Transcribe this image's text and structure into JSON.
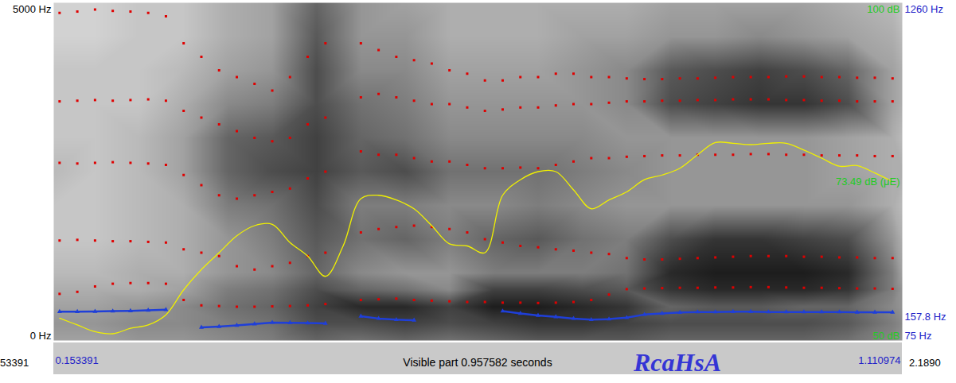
{
  "chart_data": [
    {
      "type": "spectrogram",
      "xlim": [
        0.153391,
        1.110974
      ],
      "xticks": [
        0.153391,
        1.110974
      ],
      "ylim": [
        0,
        5000
      ],
      "yticks": [
        {
          "value": 0,
          "label": "0 Hz"
        },
        {
          "value": 5000,
          "label": "5000 Hz"
        }
      ],
      "cells": {
        "x": [
          0.153391,
          0.2,
          0.25,
          0.3,
          0.35,
          0.4,
          0.45,
          0.5,
          0.55,
          0.6,
          0.65,
          0.7,
          0.75,
          0.8,
          0.85,
          0.9,
          0.95,
          1.0,
          1.05,
          1.1,
          1.110974
        ],
        "y": [
          0,
          250,
          500,
          750,
          1000,
          1500,
          2000,
          2500,
          3000,
          3500,
          4000,
          4500,
          5000
        ],
        "values": [
          [
            0.35,
            0.35,
            0.4,
            0.4,
            0.45,
            0.5,
            0.6,
            0.55,
            0.6,
            0.55,
            0.6,
            0.65,
            0.65,
            0.65,
            0.6,
            0.6,
            0.6,
            0.6,
            0.55,
            0.45,
            0.4
          ],
          [
            0.4,
            0.4,
            0.45,
            0.45,
            0.5,
            0.55,
            0.7,
            0.7,
            0.75,
            0.7,
            0.75,
            0.8,
            0.8,
            0.75,
            0.7,
            0.7,
            0.7,
            0.7,
            0.65,
            0.5,
            0.45
          ],
          [
            0.35,
            0.35,
            0.4,
            0.45,
            0.55,
            0.6,
            0.75,
            0.85,
            0.85,
            0.75,
            0.9,
            0.9,
            0.85,
            0.8,
            0.6,
            0.65,
            0.65,
            0.6,
            0.6,
            0.45,
            0.4
          ],
          [
            0.3,
            0.3,
            0.3,
            0.35,
            0.5,
            0.55,
            0.7,
            0.6,
            0.55,
            0.45,
            0.75,
            0.75,
            0.7,
            0.65,
            0.8,
            0.85,
            0.85,
            0.85,
            0.8,
            0.5,
            0.4
          ],
          [
            0.25,
            0.25,
            0.3,
            0.3,
            0.4,
            0.45,
            0.6,
            0.45,
            0.4,
            0.4,
            0.5,
            0.5,
            0.5,
            0.55,
            0.85,
            0.9,
            0.9,
            0.9,
            0.85,
            0.5,
            0.35
          ],
          [
            0.2,
            0.2,
            0.25,
            0.3,
            0.4,
            0.5,
            0.65,
            0.55,
            0.6,
            0.5,
            0.6,
            0.65,
            0.55,
            0.5,
            0.7,
            0.8,
            0.8,
            0.75,
            0.7,
            0.4,
            0.3
          ],
          [
            0.2,
            0.2,
            0.25,
            0.3,
            0.5,
            0.55,
            0.7,
            0.5,
            0.5,
            0.45,
            0.45,
            0.5,
            0.45,
            0.4,
            0.4,
            0.4,
            0.4,
            0.4,
            0.4,
            0.3,
            0.25
          ],
          [
            0.25,
            0.2,
            0.25,
            0.35,
            0.6,
            0.7,
            0.75,
            0.65,
            0.7,
            0.55,
            0.55,
            0.55,
            0.5,
            0.45,
            0.4,
            0.4,
            0.4,
            0.4,
            0.35,
            0.3,
            0.3
          ],
          [
            0.2,
            0.2,
            0.25,
            0.35,
            0.6,
            0.65,
            0.75,
            0.6,
            0.55,
            0.45,
            0.45,
            0.45,
            0.45,
            0.4,
            0.4,
            0.4,
            0.4,
            0.4,
            0.35,
            0.3,
            0.25
          ],
          [
            0.2,
            0.2,
            0.2,
            0.3,
            0.45,
            0.5,
            0.7,
            0.55,
            0.5,
            0.4,
            0.4,
            0.4,
            0.4,
            0.45,
            0.7,
            0.75,
            0.8,
            0.8,
            0.7,
            0.35,
            0.3
          ],
          [
            0.2,
            0.2,
            0.2,
            0.25,
            0.35,
            0.4,
            0.7,
            0.45,
            0.45,
            0.35,
            0.35,
            0.35,
            0.4,
            0.45,
            0.65,
            0.7,
            0.75,
            0.7,
            0.6,
            0.35,
            0.3
          ],
          [
            0.15,
            0.15,
            0.2,
            0.2,
            0.3,
            0.35,
            0.65,
            0.4,
            0.4,
            0.3,
            0.3,
            0.3,
            0.35,
            0.35,
            0.4,
            0.4,
            0.45,
            0.4,
            0.35,
            0.3,
            0.25
          ],
          [
            0.15,
            0.15,
            0.2,
            0.2,
            0.3,
            0.35,
            0.6,
            0.4,
            0.35,
            0.3,
            0.3,
            0.3,
            0.3,
            0.3,
            0.35,
            0.35,
            0.35,
            0.35,
            0.3,
            0.25,
            0.2
          ]
        ],
        "zlim": [
          0,
          1
        ]
      },
      "x": [
        0.16,
        0.18,
        0.2,
        0.22,
        0.24,
        0.26,
        0.28,
        0.3,
        0.32,
        0.34,
        0.36,
        0.38,
        0.4,
        0.42,
        0.44,
        0.46,
        0.48,
        0.5,
        0.52,
        0.54,
        0.56,
        0.58,
        0.6,
        0.62,
        0.64,
        0.66,
        0.68,
        0.7,
        0.72,
        0.74,
        0.76,
        0.78,
        0.8,
        0.82,
        0.84,
        0.86,
        0.88,
        0.9,
        0.92,
        0.94,
        0.96,
        0.98,
        1.0,
        1.02,
        1.04,
        1.06,
        1.08,
        1.1
      ],
      "series": [
        {
          "color": "#e00000",
          "marker": "square",
          "values": [
            690,
            720,
            800,
            840,
            850,
            850,
            840,
            600,
            520,
            510,
            500,
            500,
            505,
            510,
            520,
            540,
            null,
            600,
            610,
            620,
            600,
            590,
            580,
            570,
            570,
            560,
            560,
            555,
            560,
            570,
            600,
            680,
            760,
            770,
            775,
            780,
            780,
            785,
            785,
            790,
            790,
            785,
            780,
            780,
            775,
            770,
            770,
            765
          ]
        },
        {
          "color": "#e00000",
          "marker": "square",
          "values": [
            1480,
            1490,
            1480,
            1470,
            1470,
            1460,
            1450,
            1350,
            1300,
            1250,
            1100,
            1050,
            1100,
            1150,
            1250,
            1300,
            null,
            1600,
            1650,
            1680,
            1700,
            1680,
            1650,
            1600,
            1500,
            1450,
            1400,
            1380,
            1350,
            1330,
            1300,
            1280,
            1220,
            1200,
            1200,
            1210,
            1220,
            1230,
            1240,
            1250,
            1250,
            1250,
            1240,
            1240,
            1230,
            1230,
            1220,
            1220
          ]
        },
        {
          "color": "#e00000",
          "marker": "square",
          "values": [
            2630,
            2620,
            2630,
            2640,
            2630,
            2620,
            2600,
            2450,
            2300,
            2150,
            2100,
            2150,
            2200,
            2250,
            2400,
            2500,
            null,
            2800,
            2750,
            2750,
            2700,
            2650,
            2650,
            2600,
            2550,
            2550,
            2560,
            2550,
            2600,
            2650,
            2700,
            2700,
            2720,
            2730,
            2740,
            2740,
            2750,
            2750,
            2750,
            2760,
            2760,
            2750,
            2750,
            2740,
            2740,
            2740,
            2730,
            2730
          ]
        },
        {
          "color": "#e00000",
          "marker": "square",
          "values": [
            3540,
            3550,
            3560,
            3550,
            3560,
            3570,
            3550,
            3400,
            3300,
            3200,
            3100,
            3000,
            2950,
            3000,
            3200,
            3300,
            null,
            3600,
            3650,
            3600,
            3550,
            3500,
            3500,
            3450,
            3400,
            3420,
            3450,
            3450,
            3480,
            3500,
            3500,
            3520,
            3540,
            3540,
            3550,
            3550,
            3560,
            3560,
            3570,
            3570,
            3570,
            3560,
            3560,
            3550,
            3550,
            3540,
            3540,
            3540
          ]
        },
        {
          "color": "#e00000",
          "marker": "square",
          "values": [
            4850,
            4870,
            4900,
            4880,
            4870,
            4850,
            4800,
            4400,
            4200,
            4000,
            3900,
            3800,
            3700,
            3900,
            4200,
            4400,
            null,
            4400,
            4300,
            4200,
            4150,
            4100,
            4000,
            3950,
            3850,
            3850,
            3900,
            3900,
            3950,
            3950,
            3900,
            3900,
            3880,
            3870,
            3870,
            3880,
            3880,
            3890,
            3900,
            3900,
            3900,
            3910,
            3910,
            3900,
            3900,
            3890,
            3890,
            3880
          ]
        }
      ],
      "annotations": [
        {
          "text": "53391"
        },
        {
          "text": "Visible part 0.957582 seconds"
        },
        {
          "text": "RcaHsA"
        },
        {
          "text": "2.1890"
        }
      ]
    },
    {
      "type": "line",
      "xlim": [
        0.153391,
        1.110974
      ],
      "ylim": [
        75,
        1260
      ],
      "yticks": [
        {
          "value": 75,
          "label": "75 Hz"
        },
        {
          "value": 157.8,
          "label": "157.8 Hz"
        },
        {
          "value": 1260,
          "label": "1260 Hz"
        }
      ],
      "tick_labels": "y",
      "x": [
        0.16,
        0.18,
        0.2,
        0.22,
        0.24,
        0.26,
        0.28,
        0.3,
        0.32,
        0.34,
        0.36,
        0.38,
        0.4,
        0.42,
        0.44,
        0.46,
        0.48,
        0.5,
        0.52,
        0.54,
        0.56,
        0.58,
        0.6,
        0.62,
        0.64,
        0.66,
        0.68,
        0.7,
        0.72,
        0.74,
        0.76,
        0.78,
        0.8,
        0.82,
        0.84,
        0.86,
        0.88,
        0.9,
        0.92,
        0.94,
        0.96,
        0.98,
        1.0,
        1.02,
        1.04,
        1.06,
        1.08,
        1.1
      ],
      "series": [
        {
          "color": "#1f3fd8",
          "marker": "triangle",
          "line_style": "solid",
          "values": [
            176,
            176,
            177,
            178,
            179,
            181,
            183,
            null,
            121,
            124,
            128,
            133,
            138,
            137,
            136,
            135,
            null,
            160,
            152,
            148,
            146,
            null,
            null,
            null,
            null,
            178,
            170,
            163,
            158,
            152,
            148,
            150,
            155,
            166,
            170,
            173,
            175,
            175,
            176,
            176,
            175,
            175,
            175,
            175,
            175,
            174,
            174,
            174
          ]
        }
      ]
    },
    {
      "type": "line",
      "xlim": [
        0.153391,
        1.110974
      ],
      "ylim": [
        50,
        100
      ],
      "yticks": [
        {
          "value": 50,
          "label": "50 dB"
        },
        {
          "value": 73.49,
          "label": "73.49 dB (μE)"
        },
        {
          "value": 100,
          "label": "100 dB"
        }
      ],
      "tick_labels": "y",
      "x": [
        0.16,
        0.18,
        0.2,
        0.22,
        0.24,
        0.26,
        0.28,
        0.3,
        0.32,
        0.34,
        0.36,
        0.38,
        0.4,
        0.42,
        0.44,
        0.46,
        0.48,
        0.5,
        0.52,
        0.54,
        0.56,
        0.58,
        0.6,
        0.62,
        0.64,
        0.66,
        0.68,
        0.7,
        0.72,
        0.74,
        0.76,
        0.78,
        0.8,
        0.82,
        0.84,
        0.86,
        0.88,
        0.9,
        0.92,
        0.94,
        0.96,
        0.98,
        1.0,
        1.02,
        1.04,
        1.06,
        1.08,
        1.1
      ],
      "series": [
        {
          "color": "#f0f000",
          "line_style": "solid",
          "values": [
            53.3,
            52.3,
            51.3,
            51.0,
            51.8,
            52.3,
            53.8,
            57.5,
            60.5,
            63.0,
            65.5,
            67.0,
            67.2,
            64.5,
            62.5,
            59.5,
            64.0,
            71.0,
            71.5,
            70.8,
            69.5,
            67.0,
            64.3,
            64.0,
            63.0,
            71.5,
            73.8,
            75.0,
            75.0,
            72.3,
            69.5,
            70.8,
            72.0,
            73.8,
            74.5,
            75.5,
            77.5,
            79.3,
            79.2,
            79.0,
            79.2,
            79.2,
            78.2,
            77.0,
            75.8,
            75.9,
            74.8,
            73.5
          ]
        }
      ]
    }
  ]
}
